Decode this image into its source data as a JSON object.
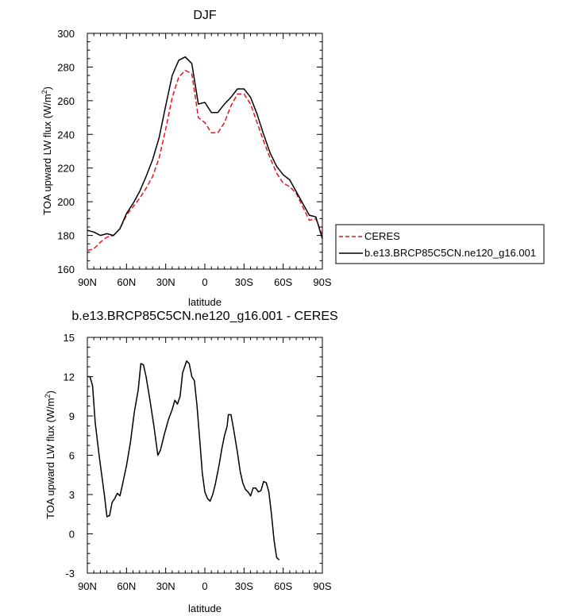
{
  "chart_data": [
    {
      "type": "line",
      "title": "DJF",
      "xlabel": "latitude",
      "ylabel": "TOA upward LW flux (W/m²)",
      "ylim": [
        160,
        300
      ],
      "xlim": [
        90,
        -90
      ],
      "x_ticks": [
        {
          "value": 90,
          "label": "90N"
        },
        {
          "value": 60,
          "label": "60N"
        },
        {
          "value": 30,
          "label": "30N"
        },
        {
          "value": 0,
          "label": "0"
        },
        {
          "value": -30,
          "label": "30S"
        },
        {
          "value": -60,
          "label": "60S"
        },
        {
          "value": -90,
          "label": "90S"
        }
      ],
      "y_ticks": [
        160,
        180,
        200,
        220,
        240,
        260,
        280,
        300
      ],
      "legend_position": "right",
      "series": [
        {
          "name": "CERES",
          "color": "#e8141c",
          "dash": "dashed",
          "points": [
            [
              90,
              171
            ],
            [
              85,
              172
            ],
            [
              80,
              176
            ],
            [
              75,
              179
            ],
            [
              70,
              180
            ],
            [
              65,
              184
            ],
            [
              60,
              192
            ],
            [
              55,
              197
            ],
            [
              50,
              202
            ],
            [
              45,
              208
            ],
            [
              40,
              215
            ],
            [
              35,
              226
            ],
            [
              30,
              243
            ],
            [
              25,
              262
            ],
            [
              20,
              274
            ],
            [
              15,
              278
            ],
            [
              10,
              276
            ],
            [
              5,
              250
            ],
            [
              0,
              247
            ],
            [
              -5,
              241
            ],
            [
              -10,
              241
            ],
            [
              -15,
              247
            ],
            [
              -20,
              257
            ],
            [
              -25,
              264
            ],
            [
              -30,
              264
            ],
            [
              -35,
              258
            ],
            [
              -40,
              247
            ],
            [
              -45,
              236
            ],
            [
              -50,
              226
            ],
            [
              -55,
              217
            ],
            [
              -60,
              211
            ],
            [
              -65,
              209
            ],
            [
              -70,
              205
            ],
            [
              -75,
              197
            ],
            [
              -80,
              189
            ],
            [
              -85,
              190
            ],
            [
              -90,
              180
            ]
          ]
        },
        {
          "name": "b.e13.BRCP85C5CN.ne120_g16.001",
          "color": "#000000",
          "dash": "solid",
          "points": [
            [
              90,
              183
            ],
            [
              85,
              182
            ],
            [
              80,
              180
            ],
            [
              75,
              181
            ],
            [
              70,
              180
            ],
            [
              65,
              184
            ],
            [
              60,
              193
            ],
            [
              55,
              199
            ],
            [
              50,
              206
            ],
            [
              45,
              215
            ],
            [
              40,
              225
            ],
            [
              35,
              238
            ],
            [
              30,
              257
            ],
            [
              25,
              275
            ],
            [
              20,
              284
            ],
            [
              15,
              286
            ],
            [
              10,
              282
            ],
            [
              5,
              258
            ],
            [
              0,
              259
            ],
            [
              -5,
              253
            ],
            [
              -10,
              253
            ],
            [
              -15,
              258
            ],
            [
              -20,
              262
            ],
            [
              -25,
              267
            ],
            [
              -30,
              267
            ],
            [
              -35,
              262
            ],
            [
              -40,
              252
            ],
            [
              -45,
              240
            ],
            [
              -50,
              229
            ],
            [
              -55,
              221
            ],
            [
              -60,
              216
            ],
            [
              -65,
              213
            ],
            [
              -70,
              206
            ],
            [
              -75,
              199
            ],
            [
              -80,
              192
            ],
            [
              -85,
              191
            ],
            [
              -90,
              178
            ]
          ]
        }
      ]
    },
    {
      "type": "line",
      "title": "b.e13.BRCP85C5CN.ne120_g16.001 - CERES",
      "xlabel": "latitude",
      "ylabel": "TOA upward LW flux (W/m²)",
      "ylim": [
        -3,
        15
      ],
      "xlim": [
        90,
        -90
      ],
      "x_ticks": [
        {
          "value": 90,
          "label": "90N"
        },
        {
          "value": 60,
          "label": "60N"
        },
        {
          "value": 30,
          "label": "30N"
        },
        {
          "value": 0,
          "label": "0"
        },
        {
          "value": -30,
          "label": "30S"
        },
        {
          "value": -60,
          "label": "60S"
        },
        {
          "value": -90,
          "label": "90S"
        }
      ],
      "y_ticks": [
        -3,
        0,
        3,
        6,
        9,
        12,
        15
      ],
      "series": [
        {
          "color": "#000000",
          "dash": "solid",
          "points": [
            [
              90,
              12
            ],
            [
              88,
              12
            ],
            [
              86,
              11.3
            ],
            [
              84,
              8.5
            ],
            [
              81,
              6
            ],
            [
              79,
              4.5
            ],
            [
              77,
              3
            ],
            [
              75,
              1.3
            ],
            [
              73,
              1.4
            ],
            [
              71,
              2.4
            ],
            [
              69,
              2.7
            ],
            [
              67,
              3.1
            ],
            [
              65,
              2.9
            ],
            [
              63,
              3.8
            ],
            [
              60,
              5.2
            ],
            [
              57,
              7
            ],
            [
              54,
              9.3
            ],
            [
              51,
              11
            ],
            [
              49,
              13
            ],
            [
              47,
              12.9
            ],
            [
              45,
              12
            ],
            [
              42,
              10.2
            ],
            [
              39,
              8.2
            ],
            [
              36,
              6
            ],
            [
              34,
              6.4
            ],
            [
              31,
              7.6
            ],
            [
              28,
              8.7
            ],
            [
              25,
              9.5
            ],
            [
              23,
              10.2
            ],
            [
              21,
              9.9
            ],
            [
              19,
              10.5
            ],
            [
              17,
              12.3
            ],
            [
              14,
              13.2
            ],
            [
              12,
              13
            ],
            [
              10,
              12
            ],
            [
              8,
              11.7
            ],
            [
              6,
              9.8
            ],
            [
              4,
              7.3
            ],
            [
              2,
              4.7
            ],
            [
              0,
              3.2
            ],
            [
              -2,
              2.7
            ],
            [
              -4,
              2.5
            ],
            [
              -6,
              3
            ],
            [
              -8,
              3.8
            ],
            [
              -11,
              5.3
            ],
            [
              -13,
              6.5
            ],
            [
              -15,
              7.5
            ],
            [
              -17,
              8.2
            ],
            [
              -18,
              9.1
            ],
            [
              -20,
              9.1
            ],
            [
              -22,
              8
            ],
            [
              -25,
              6.2
            ],
            [
              -27,
              4.8
            ],
            [
              -29,
              3.9
            ],
            [
              -31,
              3.4
            ],
            [
              -33,
              3.2
            ],
            [
              -35,
              2.9
            ],
            [
              -37,
              3.5
            ],
            [
              -39,
              3.5
            ],
            [
              -41,
              3.2
            ],
            [
              -43,
              3.3
            ],
            [
              -45,
              4
            ],
            [
              -47,
              3.9
            ],
            [
              -49,
              3.2
            ],
            [
              -51,
              1.5
            ],
            [
              -53,
              -0.5
            ],
            [
              -55,
              -1.8
            ],
            [
              -57,
              -2.0
            ]
          ]
        }
      ]
    }
  ],
  "panels": [
    {
      "title": "DJF",
      "xlabel": "latitude",
      "ylabel_main": "TOA upward LW flux (W/m",
      "ylabel_sup": "2",
      "ylabel_end": ")"
    },
    {
      "title": "b.e13.BRCP85C5CN.ne120_g16.001 - CERES",
      "xlabel": "latitude",
      "ylabel_main": "TOA upward LW flux (W/m",
      "ylabel_sup": "2",
      "ylabel_end": ")"
    }
  ],
  "legend": {
    "items": [
      "CERES",
      "b.e13.BRCP85C5CN.ne120_g16.001"
    ]
  }
}
